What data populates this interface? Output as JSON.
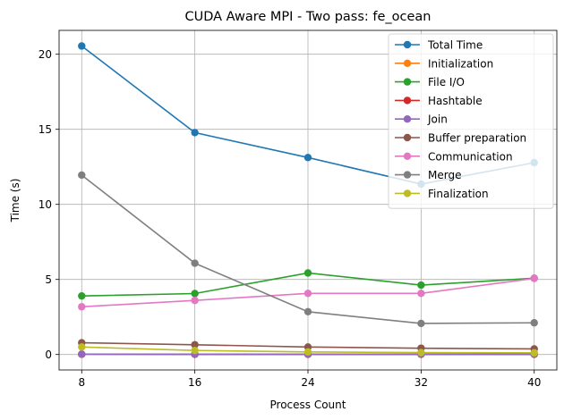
{
  "chart_data": {
    "type": "line",
    "title": "CUDA Aware MPI - Two pass: fe_ocean",
    "xlabel": "Process Count",
    "ylabel": "Time (s)",
    "x": [
      8,
      16,
      24,
      32,
      40
    ],
    "xticks": [
      "8",
      "16",
      "24",
      "32",
      "40"
    ],
    "xlim": [
      6.4,
      41.6
    ],
    "ylim": [
      -1.03,
      21.59
    ],
    "yticks": [
      0,
      5,
      10,
      15,
      20
    ],
    "yticklabels": [
      "0",
      "5",
      "10",
      "15",
      "20"
    ],
    "grid": true,
    "legend_position": "top-right",
    "series": [
      {
        "name": "Total Time",
        "color": "#1f77b4",
        "values": [
          20.55,
          14.78,
          13.12,
          11.35,
          12.78
        ]
      },
      {
        "name": "Initialization",
        "color": "#ff7f0e",
        "values": [
          0.02,
          0.02,
          0.02,
          0.02,
          0.02
        ]
      },
      {
        "name": "File I/O",
        "color": "#2ca02c",
        "values": [
          3.9,
          4.06,
          5.43,
          4.62,
          5.08
        ]
      },
      {
        "name": "Hashtable",
        "color": "#d62728",
        "values": [
          0.02,
          0.01,
          0.01,
          0.01,
          0.01
        ]
      },
      {
        "name": "Join",
        "color": "#9467bd",
        "values": [
          0.02,
          0.02,
          0.02,
          0.02,
          0.02
        ]
      },
      {
        "name": "Buffer preparation",
        "color": "#8c564b",
        "values": [
          0.78,
          0.65,
          0.5,
          0.42,
          0.37
        ]
      },
      {
        "name": "Communication",
        "color": "#e377c2",
        "values": [
          3.18,
          3.6,
          4.07,
          4.07,
          5.07
        ]
      },
      {
        "name": "Merge",
        "color": "#7f7f7f",
        "values": [
          11.95,
          6.08,
          2.85,
          2.07,
          2.11
        ]
      },
      {
        "name": "Finalization",
        "color": "#bcbd22",
        "values": [
          0.5,
          0.27,
          0.17,
          0.13,
          0.11
        ]
      }
    ]
  }
}
